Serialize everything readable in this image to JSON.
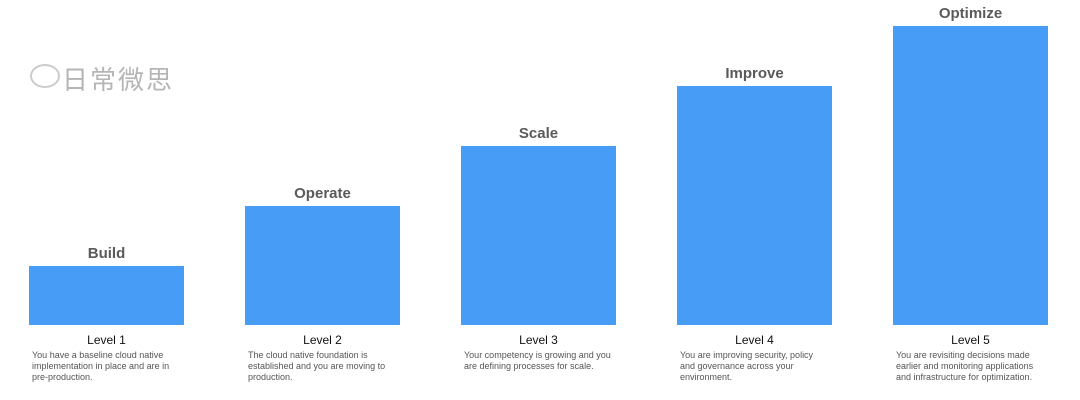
{
  "accent_color": "#479df6",
  "levels": [
    {
      "title": "Build",
      "level": "Level 1",
      "description": "You have a baseline cloud native implementation in place and are in pre-production."
    },
    {
      "title": "Operate",
      "level": "Level 2",
      "description": "The cloud native foundation is established and you are moving to production."
    },
    {
      "title": "Scale",
      "level": "Level 3",
      "description": "Your competency is growing and you are defining processes for scale."
    },
    {
      "title": "Improve",
      "level": "Level 4",
      "description": "You are improving security, policy and governance across your environment."
    },
    {
      "title": "Optimize",
      "level": "Level 5",
      "description": "You are revisiting decisions made earlier and monitoring applications and infrastructure for optimization."
    }
  ],
  "watermark": {
    "text": "日常微思",
    "icon": "wechat-icon"
  }
}
